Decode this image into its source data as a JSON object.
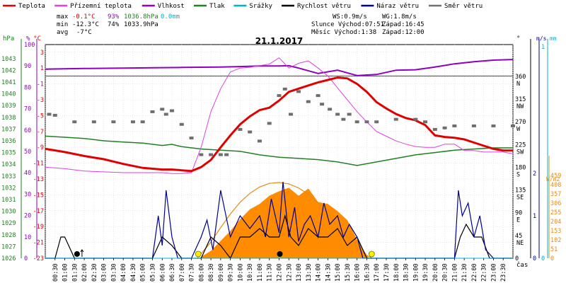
{
  "chart_data": {
    "type": "line",
    "title": "21.1.2017",
    "legend": [
      {
        "label": "Teplota",
        "color": "#e00000"
      },
      {
        "label": "Přízemní teplota",
        "color": "#e040e0"
      },
      {
        "label": "Vlhkost",
        "color": "#9000c0"
      },
      {
        "label": "Tlak",
        "color": "#208020"
      },
      {
        "label": "Srážky",
        "color": "#00b0d0"
      },
      {
        "label": "Rychlost větru",
        "color": "#000000"
      },
      {
        "label": "Náraz větru",
        "color": "#000090"
      },
      {
        "label": "Směr větru",
        "color": "#707070"
      }
    ],
    "stats": {
      "max": {
        "label": "max",
        "temp": "-0.1°C",
        "hum": "93%",
        "press": "1036.8hPa",
        "rain": "0.0mm"
      },
      "min": {
        "label": "min",
        "temp": "-12.3°C",
        "hum": "74%",
        "press": "1033.9hPa"
      },
      "avg": {
        "label": "avg",
        "temp": "-7°C"
      }
    },
    "info": {
      "ws": "WS:0.9m/s",
      "wg": "WG:1.8m/s",
      "sun": "Slunce Východ:07:51",
      "sun_set": "Západ:16:45",
      "moon": "Měsíc  Východ:1:38",
      "moon_set": "Západ:12:00"
    },
    "axes": {
      "hpa_unit": "hPa",
      "pct_unit": "%",
      "temp_unit": "°C",
      "deg_unit": "°",
      "ms_unit": "m/s",
      "mm_unit": "mm",
      "wm2_unit": "W/m2",
      "time_label": "čas",
      "hpa_ticks": [
        "1043",
        "1042",
        "1041",
        "1040",
        "1039",
        "1038",
        "1037",
        "1036",
        "1035",
        "1034",
        "1033",
        "1032",
        "1031",
        "1030",
        "1029",
        "1028",
        "1027",
        "1026"
      ],
      "pct_ticks": [
        "100",
        "90",
        "80",
        "70",
        "60",
        "50",
        "40",
        "30",
        "20",
        "10",
        "0"
      ],
      "temp_ticks": [
        "3",
        "1",
        "-1",
        "-3",
        "-5",
        "-7",
        "-9",
        "-11",
        "-13",
        "-15",
        "-17",
        "-19",
        "-21",
        "-23"
      ],
      "dir_ticks": [
        {
          "deg": "360",
          "dir": "N"
        },
        {
          "deg": "315",
          "dir": "NW"
        },
        {
          "deg": "270",
          "dir": "W"
        },
        {
          "deg": "225",
          "dir": "SW"
        },
        {
          "deg": "180",
          "dir": "S"
        },
        {
          "deg": "135",
          "dir": "SE"
        },
        {
          "deg": "90",
          "dir": "E"
        },
        {
          "deg": "45",
          "dir": "NE"
        },
        {
          "deg": "0",
          "dir": ""
        }
      ],
      "ms_ticks": [
        "2",
        "1",
        "0"
      ],
      "mm_ticks": [
        "1",
        "0"
      ],
      "sol_ticks": [
        "459",
        "408",
        "357",
        "306",
        "255",
        "204",
        "153",
        "102",
        "51",
        "0"
      ],
      "time_ticks": [
        "00:30",
        "01:00",
        "01:30",
        "02:00",
        "02:30",
        "03:00",
        "03:30",
        "04:00",
        "04:30",
        "05:00",
        "05:30",
        "06:00",
        "06:30",
        "07:00",
        "07:30",
        "08:00",
        "08:30",
        "09:00",
        "09:30",
        "10:00",
        "10:30",
        "11:00",
        "11:30",
        "12:00",
        "12:30",
        "13:00",
        "13:30",
        "14:00",
        "14:30",
        "15:00",
        "15:30",
        "16:00",
        "16:30",
        "17:00",
        "17:30",
        "18:00",
        "18:30",
        "19:00",
        "19:30",
        "20:00",
        "20:30",
        "21:00",
        "21:30",
        "22:00",
        "22:30",
        "23:00",
        "23:30"
      ]
    },
    "series": [
      {
        "name": "Teplota",
        "unit": "°C",
        "x_hours": [
          0,
          1,
          2,
          3,
          4,
          5,
          6,
          6.5,
          7,
          7.5,
          8,
          8.5,
          9,
          9.5,
          10,
          10.5,
          11,
          11.5,
          12,
          12.5,
          13,
          13.5,
          14,
          14.5,
          15,
          15.5,
          16,
          16.5,
          17,
          17.5,
          18,
          18.5,
          19,
          19.5,
          20,
          20.5,
          21,
          21.5,
          22,
          22.5,
          23,
          23.5,
          24
        ],
        "values": [
          -9.2,
          -9.6,
          -10.1,
          -10.5,
          -11.1,
          -11.6,
          -11.8,
          -11.8,
          -11.9,
          -12.0,
          -11.5,
          -10.6,
          -9.0,
          -7.5,
          -6.1,
          -5.1,
          -4.3,
          -4.0,
          -3.1,
          -2.0,
          -1.6,
          -1.2,
          -0.8,
          -0.5,
          -0.2,
          -0.3,
          -1.0,
          -2.0,
          -3.3,
          -4.1,
          -4.8,
          -5.3,
          -5.6,
          -6.2,
          -7.5,
          -7.7,
          -7.8,
          -8.0,
          -8.4,
          -8.8,
          -9.2,
          -9.4,
          -9.4
        ]
      },
      {
        "name": "Přízemní teplota",
        "unit": "°C",
        "x_hours": [
          0,
          1,
          2,
          3,
          4,
          5,
          6,
          6.5,
          7,
          7.5,
          8,
          8.5,
          9,
          9.5,
          10,
          10.5,
          11,
          11.5,
          12,
          12.5,
          13,
          13.5,
          14,
          14.5,
          15,
          15.5,
          16,
          16.5,
          17,
          17.5,
          18,
          18.5,
          19,
          19.5,
          20,
          20.5,
          21,
          21.5,
          22,
          22.5,
          23,
          23.5,
          24
        ],
        "values": [
          -11.5,
          -11.7,
          -12.0,
          -12.1,
          -12.2,
          -12.2,
          -12.2,
          -12.3,
          -12.3,
          -12.2,
          -9.0,
          -4.5,
          -1.6,
          0.5,
          1.0,
          1.1,
          1.3,
          1.5,
          2.3,
          1.0,
          1.6,
          1.9,
          1.0,
          0.0,
          -1.5,
          -3.0,
          -4.5,
          -5.8,
          -7.0,
          -7.6,
          -8.2,
          -8.6,
          -8.9,
          -9.0,
          -9.0,
          -8.6,
          -8.6,
          -9.4,
          -9.4,
          -9.6,
          -9.6,
          -9.6,
          -9.8
        ]
      },
      {
        "name": "Vlhkost",
        "unit": "%",
        "x_hours": [
          0,
          2,
          4,
          6,
          7,
          8,
          9,
          10,
          11,
          12,
          12.5,
          13,
          14,
          15,
          16,
          17,
          18,
          19,
          20,
          21,
          22,
          23,
          24
        ],
        "values": [
          88.5,
          88.8,
          89,
          89.2,
          89.3,
          89.4,
          89.5,
          89.7,
          90,
          90,
          90.1,
          89,
          86.5,
          88,
          85.5,
          86,
          88,
          88.2,
          89.5,
          91,
          92,
          92.7,
          93
        ]
      },
      {
        "name": "Tlak",
        "unit": "hPa",
        "x_hours": [
          0,
          1,
          2,
          3,
          4,
          5,
          6,
          6.5,
          7,
          8,
          9,
          10,
          11,
          12,
          13,
          14,
          15,
          16,
          17,
          18,
          19,
          20,
          21,
          22,
          23,
          24
        ],
        "values": [
          1036.4,
          1036.3,
          1036.2,
          1036.0,
          1035.9,
          1035.8,
          1035.6,
          1035.7,
          1035.5,
          1035.3,
          1035.2,
          1035.1,
          1034.8,
          1034.6,
          1034.5,
          1034.4,
          1034.2,
          1033.9,
          1034.2,
          1034.5,
          1034.8,
          1035.0,
          1035.2,
          1035.3,
          1035.4,
          1035.4
        ]
      },
      {
        "name": "Směr větru",
        "unit": "°",
        "points": [
          [
            0.2,
            285
          ],
          [
            0.5,
            283
          ],
          [
            1.5,
            270
          ],
          [
            2.5,
            270
          ],
          [
            3.5,
            270
          ],
          [
            4.5,
            270
          ],
          [
            5.0,
            270
          ],
          [
            5.5,
            290
          ],
          [
            6.0,
            295
          ],
          [
            6.2,
            285
          ],
          [
            6.5,
            292
          ],
          [
            7.0,
            265
          ],
          [
            7.5,
            238
          ],
          [
            8.0,
            205
          ],
          [
            8.5,
            205
          ],
          [
            9.0,
            205
          ],
          [
            9.3,
            205
          ],
          [
            10.0,
            255
          ],
          [
            10.5,
            250
          ],
          [
            11.0,
            232
          ],
          [
            11.5,
            267
          ],
          [
            12.0,
            322
          ],
          [
            12.3,
            335
          ],
          [
            12.6,
            285
          ],
          [
            13.0,
            330
          ],
          [
            13.5,
            310
          ],
          [
            14.0,
            322
          ],
          [
            14.2,
            305
          ],
          [
            14.6,
            295
          ],
          [
            15.0,
            285
          ],
          [
            15.3,
            275
          ],
          [
            15.6,
            285
          ],
          [
            16.0,
            270
          ],
          [
            16.5,
            270
          ],
          [
            17.0,
            270
          ],
          [
            18.0,
            275
          ],
          [
            19.0,
            275
          ],
          [
            19.5,
            270
          ],
          [
            20.0,
            255
          ],
          [
            20.5,
            258
          ],
          [
            21.0,
            262
          ],
          [
            22.0,
            262
          ],
          [
            23.0,
            262
          ],
          [
            24.0,
            262
          ]
        ]
      },
      {
        "name": "Rychlost větru",
        "unit": "m/s",
        "x_hours": [
          0,
          0.5,
          0.8,
          1.0,
          1.5,
          5.5,
          6.0,
          6.5,
          7.0,
          7.5,
          8.0,
          8.5,
          9.0,
          9.5,
          10.0,
          10.5,
          11.0,
          11.5,
          12.0,
          12.3,
          12.6,
          13.0,
          13.5,
          14.0,
          14.5,
          15.0,
          15.5,
          16.0,
          16.5,
          17,
          18,
          21,
          21.3,
          21.6,
          22.0,
          22.4,
          22.8,
          24
        ],
        "values": [
          0,
          0,
          0.5,
          0.5,
          0,
          0,
          0.5,
          0.3,
          0,
          0,
          0,
          0.5,
          0.3,
          0,
          0.5,
          0.5,
          0.7,
          0.5,
          0.5,
          1.0,
          0.5,
          0.3,
          0.7,
          0.5,
          0.5,
          0.7,
          0.3,
          0.5,
          0,
          0,
          0,
          0,
          0.5,
          0.8,
          0.5,
          0.5,
          0,
          0
        ]
      },
      {
        "name": "Náraz větru",
        "unit": "m/s",
        "x_hours": [
          0,
          1,
          5.5,
          5.8,
          6.0,
          6.2,
          6.5,
          6.8,
          7.0,
          7.5,
          8.0,
          8.3,
          8.6,
          9.0,
          9.5,
          10.0,
          10.5,
          11.0,
          11.3,
          11.6,
          12.0,
          12.2,
          12.5,
          12.8,
          13.0,
          13.3,
          13.6,
          14.0,
          14.3,
          14.6,
          15.0,
          15.3,
          15.6,
          16.0,
          16.3,
          17,
          21,
          21.2,
          21.4,
          21.7,
          22.0,
          22.3,
          22.6,
          23,
          24
        ],
        "values": [
          0,
          0,
          0,
          1.0,
          0.3,
          1.6,
          0.5,
          0,
          0,
          0,
          0.5,
          0.9,
          0.2,
          1.6,
          0.5,
          1.0,
          0.7,
          1.0,
          0.5,
          1.4,
          0.6,
          1.8,
          0.5,
          1.2,
          0.4,
          0.8,
          1.0,
          0.5,
          1.3,
          0.8,
          1.0,
          0.5,
          0.8,
          0.5,
          0,
          0,
          0,
          1.6,
          1.0,
          1.3,
          0.5,
          1.0,
          0.2,
          0,
          0
        ]
      },
      {
        "name": "Srážky",
        "unit": "mm",
        "x_hours": [
          0,
          24
        ],
        "values": [
          0,
          0
        ]
      },
      {
        "name": "Sluneční záření",
        "unit": "W/m2",
        "x_hours": [
          7.9,
          8.5,
          9.0,
          9.5,
          10.0,
          10.5,
          11.0,
          11.5,
          12.0,
          12.5,
          13.0,
          13.5,
          14.0,
          14.5,
          15.0,
          15.5,
          16.0,
          16.3,
          16.6
        ],
        "values": [
          0,
          40,
          95,
          150,
          215,
          270,
          300,
          345,
          370,
          390,
          345,
          385,
          310,
          300,
          260,
          210,
          100,
          50,
          0
        ]
      },
      {
        "name": "Teoretické záření",
        "unit": "W/m2",
        "x_hours": [
          7.8,
          8.5,
          9.0,
          9.5,
          10.0,
          10.5,
          11.0,
          11.5,
          12.0,
          12.5,
          13.0,
          13.5,
          14.0,
          14.5,
          15.0,
          15.5,
          16.0,
          16.5,
          16.8
        ],
        "values": [
          0,
          90,
          170,
          245,
          310,
          360,
          395,
          415,
          420,
          412,
          390,
          355,
          305,
          250,
          180,
          120,
          60,
          15,
          0
        ]
      }
    ],
    "markers": {
      "sunrise_hour": 7.85,
      "sunset_hour": 16.75,
      "moonrise_hour": 1.63,
      "moonset_hour": 12.0
    }
  }
}
